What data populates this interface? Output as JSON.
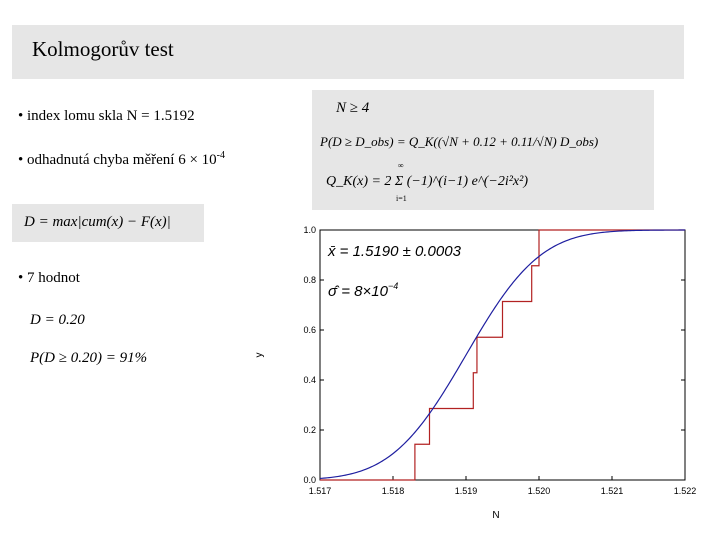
{
  "slide": {
    "title": "Kolmogorův test",
    "bullets": {
      "index": "• index lomu skla N = 1.5192",
      "chyba": "• odhadnutá chyba měření 6 × 10",
      "chyba_exp": "-4",
      "hodnot": "• 7 hodnot"
    },
    "formulas": {
      "n_cond": "N ≥ 4",
      "p_obs": "P(D ≥ D_obs) = Q_K((√N + 0.12 + 0.11/√N) D_obs)",
      "q_k": "Q_K(x) = 2 Σ (−1)^(i−1) e^(−2i²x²)",
      "sum_from": "i=1",
      "sum_to": "∞",
      "d_def": "D = max|cum(x) − F(x)|",
      "d_value": "D = 0.20",
      "p_value": "P(D ≥ 0.20) = 91%",
      "mean": "x̄ = 1.5190 ± 0.0003",
      "sigma": "σ̂ = 8×10",
      "sigma_exp": "−4"
    }
  },
  "chart_data": {
    "type": "line",
    "xlabel": "N",
    "ylabel": "y",
    "xlim": [
      1.517,
      1.522
    ],
    "ylim": [
      0.0,
      1.0
    ],
    "x_ticks": [
      "1.517",
      "1.518",
      "1.519",
      "1.520",
      "1.521",
      "1.522"
    ],
    "y_ticks": [
      "0.0",
      "0.2",
      "0.4",
      "0.6",
      "0.8",
      "1.0"
    ],
    "grid": false,
    "series": [
      {
        "kind": "step",
        "color": "#b22222",
        "x": [
          1.517,
          1.5183,
          1.5185,
          1.5191,
          1.51915,
          1.5195,
          1.5199,
          1.52,
          1.5203,
          1.522
        ],
        "y": [
          0.0,
          0.143,
          0.286,
          0.429,
          0.571,
          0.714,
          0.857,
          1.0,
          1.0,
          1.0
        ]
      },
      {
        "kind": "normal_cdf",
        "color": "#1f1fa0",
        "mean": 1.519,
        "sigma": 0.0008
      }
    ]
  }
}
